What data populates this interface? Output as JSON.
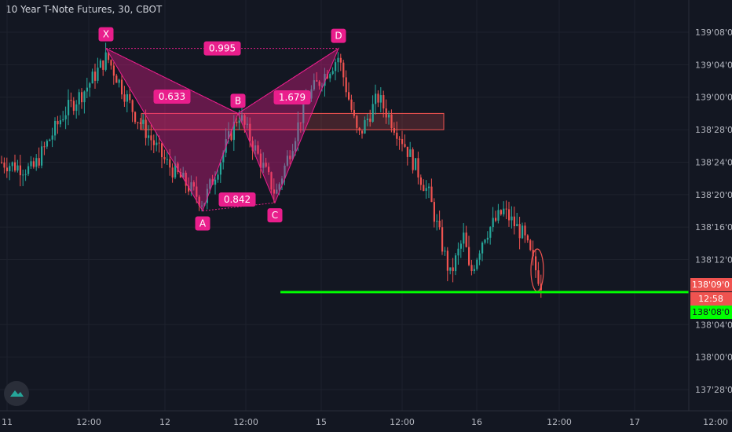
{
  "header": {
    "title": "10 Year T-Note Futures, 30, CBOT"
  },
  "colors": {
    "background": "#131722",
    "grid": "#1e222d",
    "up": "#26a69a",
    "down": "#ef5350",
    "pattern": "#e91e8c",
    "support": "#00ff00",
    "text": "#b2b5be"
  },
  "chart_data": {
    "type": "candlestick",
    "title": "10 Year T-Note Futures, 30, CBOT",
    "x_ticks": [
      "11",
      "12:00",
      "12",
      "12:00",
      "15",
      "12:00",
      "16",
      "12:00",
      "17",
      "12:00"
    ],
    "y_ticks": [
      "139'08'0",
      "139'04'0",
      "139'00'0",
      "138'28'0",
      "138'24'0",
      "138'20'0",
      "138'16'0",
      "138'12'0",
      "138'04'0",
      "138'00'0",
      "137'28'0"
    ],
    "y_range": [
      "137'26'0",
      "139'12'0"
    ],
    "price_labels": [
      {
        "text": "138'09'0",
        "kind": "last-price"
      },
      {
        "text": "12:58",
        "kind": "countdown"
      },
      {
        "text": "138'08'0",
        "kind": "support-level"
      }
    ],
    "pattern": {
      "name": "Bearish harmonic (XABCD)",
      "points": [
        {
          "label": "X",
          "price": "139'06'0"
        },
        {
          "label": "A",
          "price": "138'18'0"
        },
        {
          "label": "B",
          "price": "138'30'0"
        },
        {
          "label": "C",
          "price": "138'19'0"
        },
        {
          "label": "D",
          "price": "139'06'0"
        }
      ],
      "ratios": [
        "0.995",
        "0.633",
        "1.679",
        "0.842"
      ]
    },
    "resistance_zone": {
      "low": "138'28'0",
      "high": "138'30'0"
    },
    "support_line": {
      "price": "138'08'0"
    },
    "grid": true,
    "legend": "none"
  }
}
